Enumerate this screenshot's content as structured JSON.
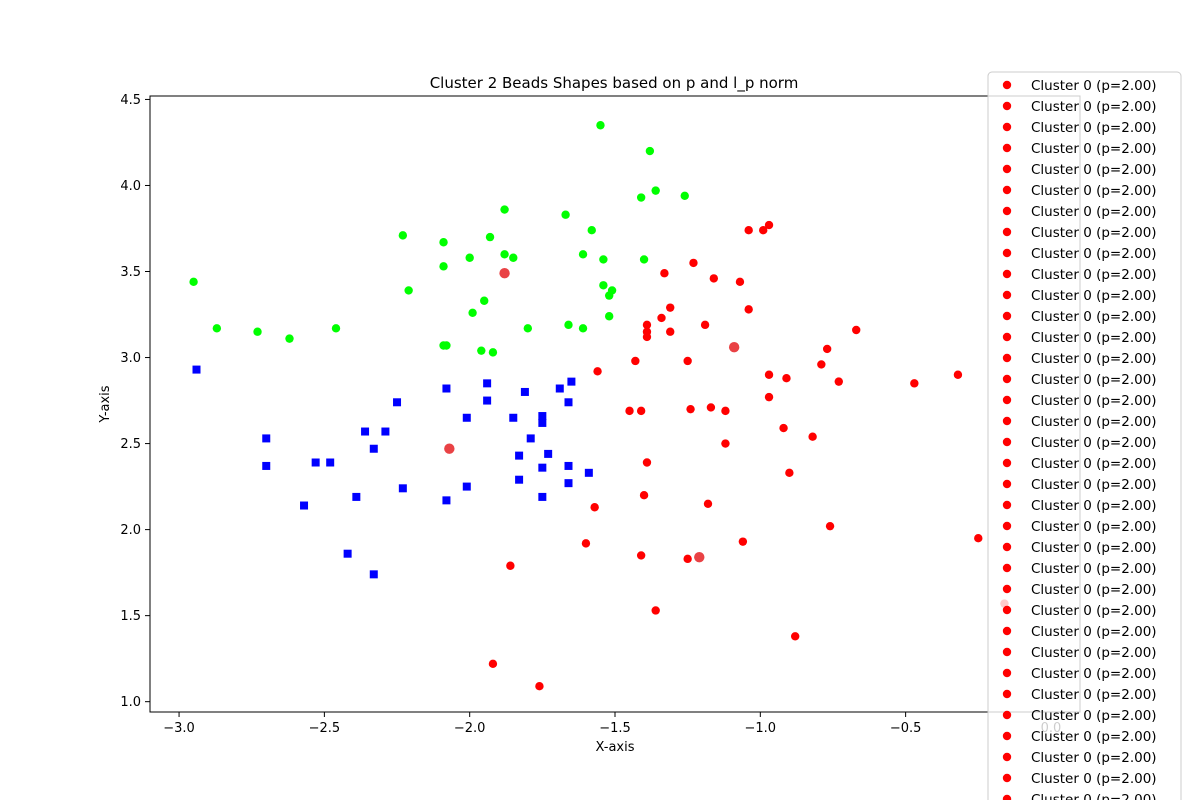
{
  "chart_data": {
    "type": "scatter",
    "title": "Cluster 2 Beads Shapes based on p and l_p norm",
    "xlabel": "X-axis",
    "ylabel": "Y-axis",
    "xlim": [
      -3.1,
      0.1
    ],
    "ylim": [
      0.94,
      4.52
    ],
    "x_ticks": [
      -3.0,
      -2.5,
      -2.0,
      -1.5,
      -1.0,
      -0.5,
      0.0
    ],
    "x_tick_labels": [
      "−3.0",
      "−2.5",
      "−2.0",
      "−1.5",
      "−1.0",
      "−0.5",
      "0.0"
    ],
    "y_ticks": [
      1.0,
      1.5,
      2.0,
      2.5,
      3.0,
      3.5,
      4.0,
      4.5
    ],
    "y_tick_labels": [
      "1.0",
      "1.5",
      "2.0",
      "2.5",
      "3.0",
      "3.5",
      "4.0",
      "4.5"
    ],
    "grid": false,
    "legend_position": "upper-right, outside",
    "colors": {
      "red": "#ff0000",
      "green": "#00ff00",
      "blue": "#0000ff",
      "center": "#e8383b"
    },
    "legend": {
      "entries": [
        "Cluster 0 (p=2.00)",
        "Cluster 0 (p=2.00)",
        "Cluster 0 (p=2.00)",
        "Cluster 0 (p=2.00)",
        "Cluster 0 (p=2.00)",
        "Cluster 0 (p=2.00)",
        "Cluster 0 (p=2.00)",
        "Cluster 0 (p=2.00)",
        "Cluster 0 (p=2.00)",
        "Cluster 0 (p=2.00)",
        "Cluster 0 (p=2.00)",
        "Cluster 0 (p=2.00)",
        "Cluster 0 (p=2.00)",
        "Cluster 0 (p=2.00)",
        "Cluster 0 (p=2.00)",
        "Cluster 0 (p=2.00)",
        "Cluster 0 (p=2.00)",
        "Cluster 0 (p=2.00)",
        "Cluster 0 (p=2.00)",
        "Cluster 0 (p=2.00)",
        "Cluster 0 (p=2.00)",
        "Cluster 0 (p=2.00)",
        "Cluster 0 (p=2.00)",
        "Cluster 0 (p=2.00)",
        "Cluster 0 (p=2.00)",
        "Cluster 0 (p=2.00)",
        "Cluster 0 (p=2.00)",
        "Cluster 0 (p=2.00)",
        "Cluster 0 (p=2.00)",
        "Cluster 0 (p=2.00)",
        "Cluster 0 (p=2.00)",
        "Cluster 0 (p=2.00)",
        "Cluster 0 (p=2.00)",
        "Cluster 0 (p=2.00)",
        "Cluster 0 (p=2.00)",
        "Cluster 0 (p=2.00)"
      ]
    },
    "series": [
      {
        "color": "#ff0000",
        "marker": "circle",
        "points": [
          [
            -1.56,
            2.92
          ],
          [
            -1.43,
            2.98
          ],
          [
            -1.39,
            3.15
          ],
          [
            -1.39,
            3.12
          ],
          [
            -1.39,
            3.19
          ],
          [
            -1.33,
            3.49
          ],
          [
            -1.31,
            3.29
          ],
          [
            -1.34,
            3.23
          ],
          [
            -1.31,
            3.15
          ],
          [
            -1.25,
            2.98
          ],
          [
            -1.23,
            3.55
          ],
          [
            -1.16,
            3.46
          ],
          [
            -1.07,
            3.44
          ],
          [
            -1.19,
            3.19
          ],
          [
            -1.04,
            3.74
          ],
          [
            -0.99,
            3.74
          ],
          [
            -0.97,
            3.77
          ],
          [
            -1.04,
            3.28
          ],
          [
            -0.97,
            2.9
          ],
          [
            -0.91,
            2.88
          ],
          [
            -0.77,
            3.05
          ],
          [
            -0.67,
            3.16
          ],
          [
            -0.79,
            2.96
          ],
          [
            -0.73,
            2.86
          ],
          [
            -0.47,
            2.85
          ],
          [
            -0.32,
            2.9
          ],
          [
            -1.45,
            2.69
          ],
          [
            -1.41,
            2.69
          ],
          [
            -1.24,
            2.7
          ],
          [
            -1.17,
            2.71
          ],
          [
            -1.12,
            2.69
          ],
          [
            -0.97,
            2.77
          ],
          [
            -1.12,
            2.5
          ],
          [
            -0.92,
            2.59
          ],
          [
            -0.82,
            2.54
          ],
          [
            -1.39,
            2.39
          ],
          [
            -0.9,
            2.33
          ],
          [
            -1.4,
            2.2
          ],
          [
            -1.18,
            2.15
          ],
          [
            -1.57,
            2.13
          ],
          [
            -0.76,
            2.02
          ],
          [
            -1.6,
            1.92
          ],
          [
            -1.41,
            1.85
          ],
          [
            -1.25,
            1.83
          ],
          [
            -1.06,
            1.93
          ],
          [
            -0.25,
            1.95
          ],
          [
            -1.86,
            1.79
          ],
          [
            -1.36,
            1.53
          ],
          [
            -0.88,
            1.38
          ],
          [
            -1.92,
            1.22
          ],
          [
            -1.76,
            1.09
          ],
          [
            -0.16,
            1.57
          ]
        ]
      },
      {
        "color": "#00ff00",
        "marker": "circle",
        "points": [
          [
            -1.55,
            4.35
          ],
          [
            -1.38,
            4.2
          ],
          [
            -1.36,
            3.97
          ],
          [
            -1.41,
            3.93
          ],
          [
            -1.26,
            3.94
          ],
          [
            -1.88,
            3.86
          ],
          [
            -1.67,
            3.83
          ],
          [
            -2.23,
            3.71
          ],
          [
            -1.93,
            3.7
          ],
          [
            -2.09,
            3.67
          ],
          [
            -1.58,
            3.74
          ],
          [
            -1.88,
            3.6
          ],
          [
            -1.85,
            3.58
          ],
          [
            -2.0,
            3.58
          ],
          [
            -1.61,
            3.6
          ],
          [
            -1.54,
            3.57
          ],
          [
            -1.4,
            3.57
          ],
          [
            -2.09,
            3.53
          ],
          [
            -2.95,
            3.44
          ],
          [
            -1.54,
            3.42
          ],
          [
            -1.51,
            3.39
          ],
          [
            -2.21,
            3.39
          ],
          [
            -1.52,
            3.36
          ],
          [
            -1.95,
            3.33
          ],
          [
            -1.99,
            3.26
          ],
          [
            -1.52,
            3.24
          ],
          [
            -2.87,
            3.17
          ],
          [
            -2.46,
            3.17
          ],
          [
            -1.8,
            3.17
          ],
          [
            -1.66,
            3.19
          ],
          [
            -1.61,
            3.17
          ],
          [
            -2.73,
            3.15
          ],
          [
            -2.62,
            3.11
          ],
          [
            -2.09,
            3.07
          ],
          [
            -2.08,
            3.07
          ],
          [
            -1.96,
            3.04
          ],
          [
            -1.92,
            3.03
          ]
        ]
      },
      {
        "color": "#0000ff",
        "marker": "square",
        "points": [
          [
            -2.94,
            2.93
          ],
          [
            -2.08,
            2.82
          ],
          [
            -1.94,
            2.85
          ],
          [
            -1.81,
            2.8
          ],
          [
            -1.69,
            2.82
          ],
          [
            -1.65,
            2.86
          ],
          [
            -1.94,
            2.75
          ],
          [
            -1.66,
            2.74
          ],
          [
            -2.25,
            2.74
          ],
          [
            -2.01,
            2.65
          ],
          [
            -1.85,
            2.65
          ],
          [
            -1.75,
            2.66
          ],
          [
            -1.75,
            2.62
          ],
          [
            -2.36,
            2.57
          ],
          [
            -2.29,
            2.57
          ],
          [
            -2.7,
            2.53
          ],
          [
            -1.79,
            2.53
          ],
          [
            -2.33,
            2.47
          ],
          [
            -1.83,
            2.43
          ],
          [
            -1.73,
            2.44
          ],
          [
            -2.7,
            2.37
          ],
          [
            -2.53,
            2.39
          ],
          [
            -2.48,
            2.39
          ],
          [
            -1.75,
            2.36
          ],
          [
            -1.66,
            2.37
          ],
          [
            -1.59,
            2.33
          ],
          [
            -1.83,
            2.29
          ],
          [
            -1.66,
            2.27
          ],
          [
            -2.23,
            2.24
          ],
          [
            -2.01,
            2.25
          ],
          [
            -2.39,
            2.19
          ],
          [
            -1.75,
            2.19
          ],
          [
            -2.08,
            2.17
          ],
          [
            -2.57,
            2.14
          ],
          [
            -2.42,
            1.86
          ],
          [
            -2.33,
            1.74
          ]
        ]
      },
      {
        "color": "#e8383b",
        "marker": "circle-large",
        "points": [
          [
            -1.88,
            3.49
          ],
          [
            -1.09,
            3.06
          ],
          [
            -2.07,
            2.47
          ],
          [
            -1.21,
            1.84
          ]
        ]
      }
    ]
  }
}
